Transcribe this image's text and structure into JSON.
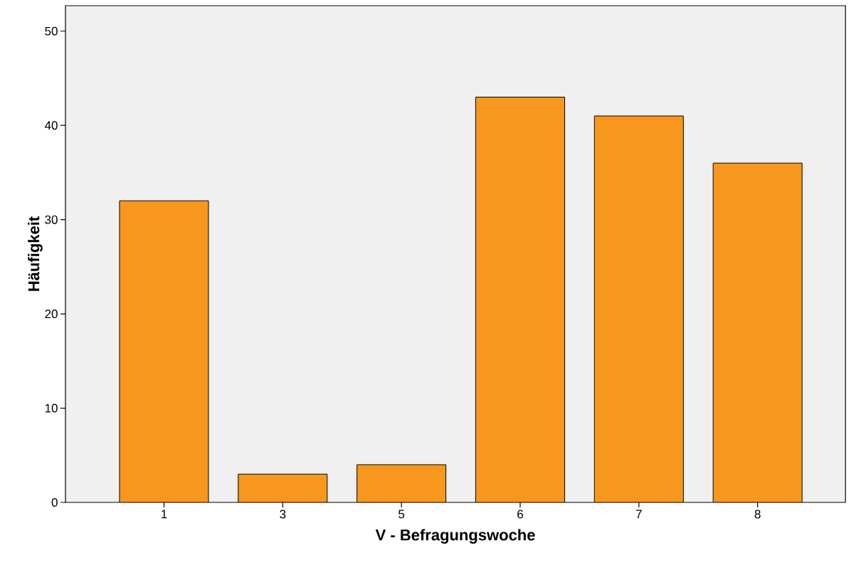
{
  "chart_data": {
    "type": "bar",
    "xlabel": "V - Befragungswoche",
    "ylabel": "Häufigkeit",
    "categories": [
      "1",
      "3",
      "5",
      "6",
      "7",
      "8"
    ],
    "values": [
      32,
      3,
      4,
      43,
      41,
      36
    ],
    "color": "#f7971e",
    "ylim": [
      0,
      52.7
    ],
    "yticks": [
      0,
      10,
      20,
      30,
      40,
      50
    ],
    "grid": false
  }
}
